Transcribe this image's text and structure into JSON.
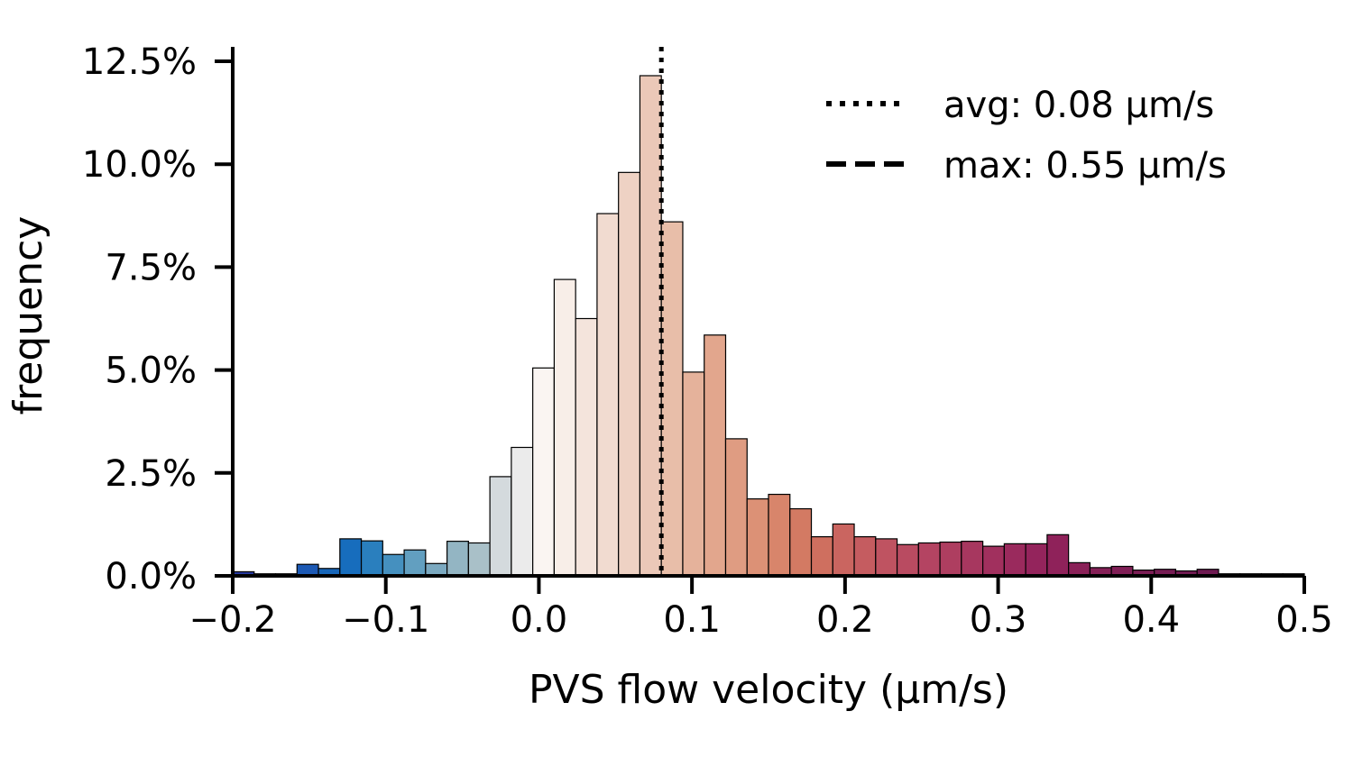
{
  "chart_data": {
    "type": "bar",
    "title": "",
    "xlabel": "PVS flow velocity (μm/s)",
    "ylabel": "frequency",
    "xlim": [
      -0.2,
      0.5
    ],
    "ylim": [
      0,
      12.5
    ],
    "xticks": [
      -0.2,
      -0.1,
      0.0,
      0.1,
      0.2,
      0.3,
      0.4,
      0.5
    ],
    "xtick_labels": [
      "−0.2",
      "−0.1",
      "0.0",
      "0.1",
      "0.2",
      "0.3",
      "0.4",
      "0.5"
    ],
    "yticks": [
      0,
      2.5,
      5.0,
      7.5,
      10.0,
      12.5
    ],
    "ytick_labels": [
      "0.0%",
      "2.5%",
      "5.0%",
      "7.5%",
      "10.0%",
      "12.5%"
    ],
    "grid": false,
    "legend_position": "top-right",
    "bin_width": 0.014,
    "bin_start": -0.2,
    "values": [
      0.1,
      0.05,
      0.05,
      0.28,
      0.18,
      0.9,
      0.85,
      0.52,
      0.63,
      0.3,
      0.84,
      0.8,
      2.41,
      3.12,
      5.05,
      7.2,
      6.25,
      8.8,
      9.8,
      12.15,
      8.6,
      4.95,
      5.85,
      3.33,
      1.87,
      1.98,
      1.63,
      0.95,
      1.26,
      0.95,
      0.9,
      0.76,
      0.8,
      0.82,
      0.84,
      0.72,
      0.78,
      0.78,
      1.0,
      0.32,
      0.2,
      0.23,
      0.14,
      0.16,
      0.12,
      0.16,
      0.05,
      0.05,
      0.05,
      0.05
    ],
    "colors": [
      "#27399e",
      "#2a3fa3",
      "#2447a8",
      "#1c59b4",
      "#1766b9",
      "#176dbd",
      "#2a7fbe",
      "#4590bf",
      "#629fc0",
      "#7ba9c0",
      "#93b5c3",
      "#a9c0c8",
      "#d4dadd",
      "#ebebeb",
      "#faf5f2",
      "#f8eee8",
      "#f4e4dc",
      "#f1dbd0",
      "#eed2c4",
      "#ebc8b8",
      "#e8bea9",
      "#e5b29b",
      "#e2a68d",
      "#df9c82",
      "#dc9176",
      "#d8856b",
      "#d37a63",
      "#cf6f5f",
      "#ca6560",
      "#c55c60",
      "#bf5361",
      "#b94b61",
      "#b44462",
      "#ae3e60",
      "#a7375f",
      "#a1305e",
      "#9a2a5d",
      "#94245c",
      "#8f225a",
      "#8a2158",
      "#852057",
      "#801f56",
      "#7b1e55",
      "#761d54",
      "#721c53",
      "#6e1b52",
      "#6a1a51",
      "#661950",
      "#62184f",
      "#5e174e"
    ],
    "series": [
      {
        "name": "avg: 0.08 μm/s",
        "style": "dotted",
        "x": 0.08
      },
      {
        "name": "max: 0.55 μm/s",
        "style": "dashed",
        "x": 0.55
      }
    ]
  }
}
